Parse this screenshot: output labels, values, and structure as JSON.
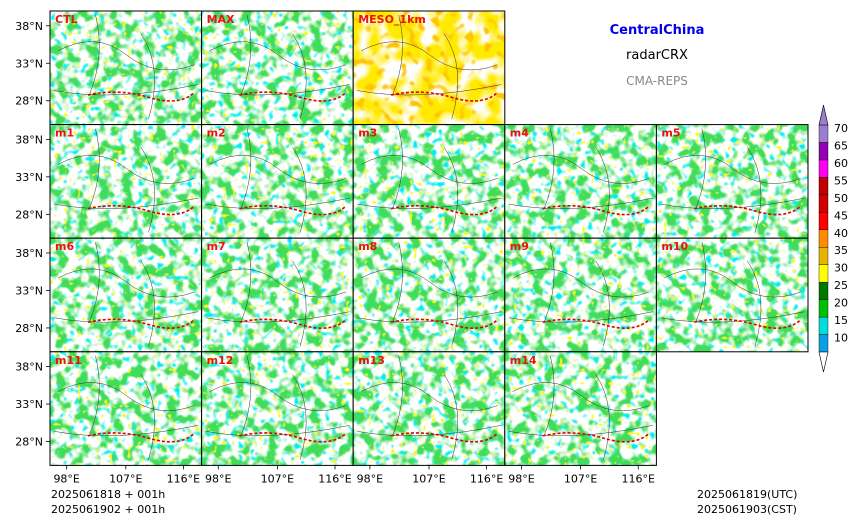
{
  "header": {
    "region": "CentralChina",
    "variable": "radarCRX",
    "system": "CMA-REPS"
  },
  "colors": {
    "region_text": "#0000ee",
    "variable_text": "#000000",
    "system_text": "#888888",
    "panel_label": "#ee1111",
    "frame": "#000000",
    "background": "#ffffff"
  },
  "panels": [
    {
      "label": "CTL"
    },
    {
      "label": "MAX"
    },
    {
      "label": "MESO_1km"
    },
    {
      "label": "m1"
    },
    {
      "label": "m2"
    },
    {
      "label": "m3"
    },
    {
      "label": "m4"
    },
    {
      "label": "m5"
    },
    {
      "label": "m6"
    },
    {
      "label": "m7"
    },
    {
      "label": "m8"
    },
    {
      "label": "m9"
    },
    {
      "label": "m10"
    },
    {
      "label": "m11"
    },
    {
      "label": "m12"
    },
    {
      "label": "m13"
    },
    {
      "label": "m14"
    }
  ],
  "axes": {
    "lat_ticks": [
      "38°N",
      "33°N",
      "28°N"
    ],
    "lon_ticks": [
      "98°E",
      "107°E",
      "116°E"
    ]
  },
  "colorbar": {
    "ticks": [
      "70",
      "65",
      "60",
      "55",
      "50",
      "45",
      "40",
      "35",
      "30",
      "25",
      "20",
      "15",
      "10"
    ],
    "colors": [
      "#0aa0e6",
      "#00dcdc",
      "#00c000",
      "#007800",
      "#ffff00",
      "#e6b400",
      "#ff8c00",
      "#ff0000",
      "#d20000",
      "#c00000",
      "#ff00f0",
      "#9600b4",
      "#9c7ccc"
    ],
    "under_color": "#ffffff",
    "over_color": "#9c7ccc"
  },
  "footer": {
    "init_utc": "2025061818  +  001h",
    "init_cst": "2025061902  +  001h",
    "valid_utc": "2025061819(UTC)",
    "valid_cst": "2025061903(CST)"
  }
}
